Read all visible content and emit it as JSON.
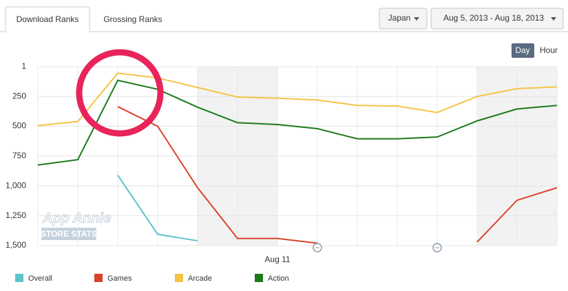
{
  "ui": {
    "tabs": [
      "Download Ranks",
      "Grossing Ranks"
    ],
    "country": "Japan",
    "date_range": "Aug 5, 2013 - Aug 18, 2013",
    "granularity": [
      "Day",
      "Hour"
    ],
    "watermark": [
      "App Annie",
      "STORE STATS"
    ]
  },
  "chart_data": {
    "type": "line",
    "categories": [
      null,
      null,
      null,
      null,
      null,
      null,
      "Aug 11",
      null,
      null,
      null,
      null,
      null,
      null,
      null
    ],
    "ylim": [
      1500,
      1
    ],
    "yticks": [
      1,
      250,
      500,
      750,
      {
        "value": 1000,
        "label": "1,000"
      },
      {
        "value": 1250,
        "label": "1,250"
      },
      {
        "value": 1500,
        "label": "1,500"
      }
    ],
    "grid": true,
    "legend": "bottom",
    "series": [
      {
        "name": "Overall",
        "color": "#5bc4cc",
        "values": [
          null,
          null,
          910,
          1405,
          1460,
          null,
          null,
          null,
          null,
          null,
          null,
          null,
          null,
          null
        ]
      },
      {
        "name": "Games",
        "color": "#d9432b",
        "values": [
          null,
          null,
          335,
          500,
          1015,
          1440,
          1440,
          1480,
          null,
          null,
          null,
          1470,
          1120,
          1015
        ]
      },
      {
        "name": "Arcade",
        "color": "#f5c342",
        "values": [
          495,
          460,
          55,
          95,
          175,
          255,
          265,
          280,
          325,
          330,
          385,
          250,
          185,
          170
        ]
      },
      {
        "name": "Action",
        "color": "#1a7a1a",
        "values": [
          825,
          780,
          115,
          190,
          340,
          470,
          485,
          520,
          605,
          605,
          590,
          455,
          355,
          325
        ]
      }
    ]
  }
}
